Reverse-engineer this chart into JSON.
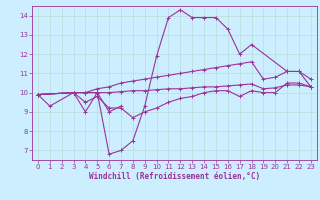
{
  "xlabel": "Windchill (Refroidissement éolien,°C)",
  "background_color": "#cceeff",
  "grid_color": "#b8ddd8",
  "line_color": "#993399",
  "xlim": [
    -0.5,
    23.5
  ],
  "ylim": [
    6.5,
    14.5
  ],
  "yticks": [
    7,
    8,
    9,
    10,
    11,
    12,
    13,
    14
  ],
  "xticks": [
    0,
    1,
    2,
    3,
    4,
    5,
    6,
    7,
    8,
    9,
    10,
    11,
    12,
    13,
    14,
    15,
    16,
    17,
    18,
    19,
    20,
    21,
    22,
    23
  ],
  "series": [
    [
      9.9,
      9.3,
      null,
      10.0,
      9.0,
      10.0,
      6.8,
      7.0,
      7.5,
      9.3,
      11.9,
      13.9,
      14.3,
      13.9,
      13.9,
      13.9,
      13.3,
      12.0,
      12.5,
      null,
      null,
      11.1,
      11.1,
      10.3
    ],
    [
      9.9,
      null,
      null,
      10.0,
      10.0,
      10.0,
      9.0,
      9.3,
      null,
      null,
      null,
      null,
      null,
      null,
      null,
      null,
      null,
      null,
      null,
      null,
      null,
      null,
      null,
      null
    ],
    [
      9.9,
      null,
      null,
      10.0,
      10.0,
      10.2,
      10.3,
      10.5,
      10.6,
      10.7,
      10.8,
      10.9,
      11.0,
      11.1,
      11.2,
      11.3,
      11.4,
      11.5,
      11.6,
      10.7,
      10.8,
      11.1,
      11.1,
      10.7
    ],
    [
      9.9,
      null,
      null,
      10.0,
      10.0,
      10.0,
      10.0,
      10.05,
      10.1,
      10.1,
      10.15,
      10.2,
      10.2,
      10.25,
      10.3,
      10.3,
      10.35,
      10.4,
      10.45,
      10.2,
      10.25,
      10.4,
      10.4,
      10.3
    ],
    [
      9.9,
      null,
      null,
      10.0,
      9.5,
      9.8,
      9.2,
      9.2,
      8.7,
      9.0,
      9.2,
      9.5,
      9.7,
      9.8,
      10.0,
      10.1,
      10.1,
      9.8,
      10.1,
      10.0,
      10.0,
      10.5,
      10.5,
      10.3
    ]
  ],
  "label_fontsize": 4.0,
  "tick_fontsize": 5.0,
  "xlabel_fontsize": 5.5,
  "linewidth": 0.8,
  "markersize": 2.5,
  "markeredgewidth": 0.7
}
